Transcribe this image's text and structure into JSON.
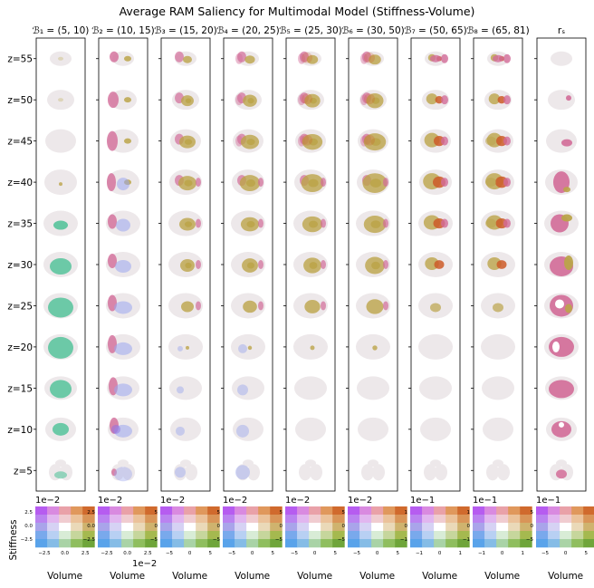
{
  "chart_data": {
    "type": "heatmap",
    "title": "Average RAM Saliency for Multimodal Model (Stiffness-Volume)",
    "columns": [
      {
        "label": "ℬ₁ = (5, 10)",
        "key": "B1"
      },
      {
        "label": "ℬ₂ = (10, 15)",
        "key": "B2"
      },
      {
        "label": "ℬ₃ = (15, 20)",
        "key": "B3"
      },
      {
        "label": "ℬ₄ = (20, 25)",
        "key": "B4"
      },
      {
        "label": "ℬ₅ = (25, 30)",
        "key": "B5"
      },
      {
        "label": "ℬ₆ = (30, 50)",
        "key": "B6"
      },
      {
        "label": "ℬ₇ = (50, 65)",
        "key": "B7"
      },
      {
        "label": "ℬ₈ = (65, 81)",
        "key": "B8"
      },
      {
        "label": "rₛ",
        "key": "rs"
      }
    ],
    "rows": [
      "z=55",
      "z=50",
      "z=45",
      "z=40",
      "z=35",
      "z=30",
      "z=25",
      "z=20",
      "z=15",
      "z=10",
      "z=5"
    ],
    "colors": {
      "brain": "#ede8ea",
      "stiffness": "#d26c98",
      "volume": "#9aa6ee",
      "olive": "#bba44a",
      "orange": "#cd5a28",
      "teal": "#55c39b",
      "violet": "#8d6ee6"
    },
    "legends": [
      {
        "exp": "1e−2",
        "xlabel": "Volume",
        "ylabel": "Stiffness",
        "yticks": [
          "2.5",
          "0.0",
          "−2.5"
        ],
        "xticks": [
          "−2.5",
          "0.0",
          "2.5"
        ]
      },
      {
        "exp": "1e−2",
        "xlabel": "Volume",
        "yticks": [
          "2.5",
          "0.0",
          "−2.5"
        ],
        "xticks": [
          "−2.5",
          "0.0",
          "2.5"
        ],
        "xexp": "1e−2"
      },
      {
        "exp": "1e−2",
        "xlabel": "Volume",
        "yticks": [
          "5",
          "0",
          "−5"
        ],
        "xticks": [
          "−5",
          "0",
          "5"
        ]
      },
      {
        "exp": "1e−2",
        "xlabel": "Volume",
        "yticks": [
          "5",
          "0",
          "−5"
        ],
        "xticks": [
          "−5",
          "0",
          "5"
        ]
      },
      {
        "exp": "1e−2",
        "xlabel": "Volume",
        "yticks": [
          "5",
          "0",
          "−5"
        ],
        "xticks": [
          "−5",
          "0",
          "5"
        ]
      },
      {
        "exp": "1e−2",
        "xlabel": "Volume",
        "yticks": [
          "5",
          "0",
          "−5"
        ],
        "xticks": [
          "−5",
          "0",
          "5"
        ]
      },
      {
        "exp": "1e−1",
        "xlabel": "Volume",
        "yticks": [
          "1",
          "0",
          "−1"
        ],
        "xticks": [
          "−1",
          "0",
          "1"
        ]
      },
      {
        "exp": "1e−1",
        "xlabel": "Volume",
        "yticks": [
          "1",
          "0",
          "−1"
        ],
        "xticks": [
          "−1",
          "0",
          "1"
        ]
      },
      {
        "exp": "1e−1",
        "xlabel": "Volume",
        "yticks": [
          "5",
          "0",
          "−5"
        ],
        "xticks": [
          "−5",
          "0",
          "5"
        ]
      }
    ]
  }
}
